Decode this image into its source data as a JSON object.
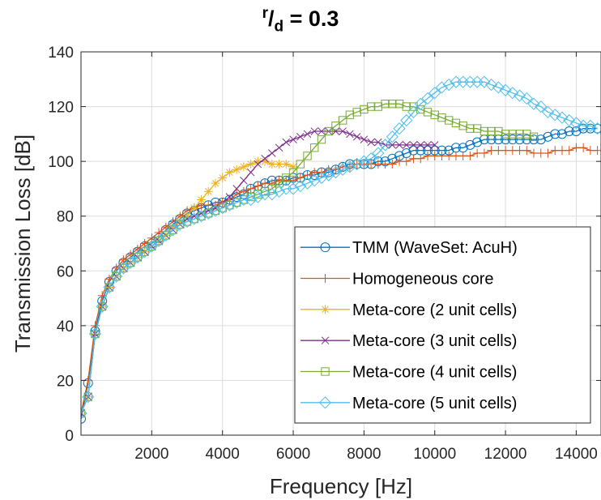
{
  "title": {
    "sup": "r",
    "mid": "/",
    "sub": "d",
    "rest": " = 0.3"
  },
  "colors": {
    "tmm": "#0072BD",
    "homogeneous": "#D95319",
    "meta2": "#EDB120",
    "meta3": "#7E2F8E",
    "meta4": "#77AC30",
    "meta5": "#4DBEEE"
  },
  "chart_data": {
    "type": "line",
    "title": "r/d = 0.3",
    "xlabel": "Frequency [Hz]",
    "ylabel": "Transmission Loss [dB]",
    "xlim": [
      0,
      14700
    ],
    "ylim": [
      0,
      140
    ],
    "xticks": [
      2000,
      4000,
      6000,
      8000,
      10000,
      12000,
      14000
    ],
    "yticks": [
      0,
      20,
      40,
      60,
      80,
      100,
      120,
      140
    ],
    "xtick_labels": [
      "2000",
      "4000",
      "6000",
      "8000",
      "10000",
      "12000",
      "14000"
    ],
    "ytick_labels": [
      "0",
      "20",
      "40",
      "60",
      "80",
      "100",
      "120",
      "140"
    ],
    "grid": true,
    "legend_position": "bottom-right",
    "series": [
      {
        "name": "TMM (WaveSet: AcuH)",
        "color": "#0072BD",
        "marker": "circle",
        "x": [
          0,
          200,
          400,
          600,
          800,
          1000,
          1200,
          1400,
          1600,
          1800,
          2000,
          2200,
          2400,
          2600,
          2800,
          3000,
          3200,
          3400,
          3600,
          3800,
          4000,
          4200,
          4400,
          4600,
          4800,
          5000,
          5200,
          5400,
          5600,
          5800,
          6000,
          6200,
          6400,
          6600,
          6800,
          7000,
          7200,
          7400,
          7600,
          7800,
          8000,
          8200,
          8400,
          8600,
          8800,
          9000,
          9200,
          9400,
          9600,
          9800,
          10000,
          10200,
          10400,
          10600,
          10800,
          11000,
          11200,
          11400,
          11600,
          11800,
          12000,
          12200,
          12400,
          12600,
          12800,
          13000,
          13200,
          13400,
          13600,
          13800,
          14000,
          14200,
          14400,
          14600
        ],
        "y": [
          6,
          19,
          38,
          49,
          56,
          60,
          63,
          65,
          67,
          69,
          70,
          72,
          75,
          77,
          79,
          81,
          82,
          83,
          84,
          85,
          85,
          86,
          87,
          88,
          90,
          91,
          92,
          93,
          93,
          93,
          94,
          94,
          95,
          95,
          96,
          96,
          97,
          98,
          99,
          99,
          99,
          99,
          100,
          100,
          101,
          102,
          103,
          104,
          104,
          104,
          104,
          104,
          104,
          105,
          105,
          106,
          107,
          108,
          108,
          108,
          108,
          108,
          108,
          108,
          108,
          108,
          109,
          110,
          110,
          111,
          111,
          112,
          112,
          112
        ]
      },
      {
        "name": "Homogeneous core",
        "color": "#D95319",
        "marker": "plus",
        "x": [
          0,
          200,
          400,
          600,
          800,
          1000,
          1200,
          1400,
          1600,
          1800,
          2000,
          2200,
          2400,
          2600,
          2800,
          3000,
          3200,
          3400,
          3600,
          3800,
          4000,
          4200,
          4400,
          4600,
          4800,
          5000,
          5200,
          5400,
          5600,
          5800,
          6000,
          6200,
          6400,
          6600,
          6800,
          7000,
          7200,
          7400,
          7600,
          7800,
          8000,
          8200,
          8400,
          8600,
          8800,
          9000,
          9200,
          9400,
          9600,
          9800,
          10000,
          10200,
          10400,
          10600,
          10800,
          11000,
          11200,
          11400,
          11600,
          11800,
          12000,
          12200,
          12400,
          12600,
          12800,
          13000,
          13200,
          13400,
          13600,
          13800,
          14000,
          14200,
          14400,
          14600
        ],
        "y": [
          8,
          20,
          40,
          51,
          57,
          61,
          64,
          66,
          68,
          70,
          72,
          74,
          76,
          78,
          80,
          82,
          83,
          84,
          84,
          84,
          85,
          86,
          88,
          89,
          90,
          91,
          92,
          92,
          93,
          93,
          93,
          94,
          95,
          96,
          96,
          97,
          97,
          98,
          98,
          99,
          99,
          99,
          99,
          99,
          99,
          100,
          100,
          101,
          101,
          102,
          102,
          102,
          102,
          102,
          102,
          102,
          103,
          103,
          104,
          104,
          104,
          104,
          104,
          104,
          103,
          103,
          103,
          104,
          104,
          104,
          105,
          105,
          104,
          104
        ]
      },
      {
        "name": "Meta-core (2 unit cells)",
        "color": "#EDB120",
        "marker": "star",
        "x": [
          0,
          200,
          400,
          600,
          800,
          1000,
          1200,
          1400,
          1600,
          1800,
          2000,
          2200,
          2400,
          2600,
          2800,
          3000,
          3200,
          3400,
          3600,
          3800,
          4000,
          4200,
          4400,
          4600,
          4800,
          5000,
          5200,
          5400,
          5600,
          5800,
          6000
        ],
        "y": [
          8,
          14,
          37,
          47,
          54,
          58,
          61,
          63,
          65,
          67,
          69,
          71,
          73,
          76,
          78,
          80,
          83,
          86,
          89,
          92,
          94,
          96,
          97,
          98,
          99,
          100,
          100,
          99,
          99,
          99,
          98
        ]
      },
      {
        "name": "Meta-core (3 unit cells)",
        "color": "#7E2F8E",
        "marker": "x",
        "x": [
          0,
          200,
          400,
          600,
          800,
          1000,
          1200,
          1400,
          1600,
          1800,
          2000,
          2200,
          2400,
          2600,
          2800,
          3000,
          3200,
          3400,
          3600,
          3800,
          4000,
          4200,
          4400,
          4600,
          4800,
          5000,
          5200,
          5400,
          5600,
          5800,
          6000,
          6200,
          6400,
          6600,
          6800,
          7000,
          7200,
          7400,
          7600,
          7800,
          8000,
          8200,
          8400,
          8600,
          8800,
          9000,
          9200,
          9400,
          9600,
          9800,
          10000
        ],
        "y": [
          8,
          14,
          37,
          47,
          54,
          58,
          61,
          63,
          65,
          67,
          69,
          71,
          73,
          75,
          77,
          79,
          80,
          81,
          82,
          83,
          85,
          87,
          90,
          93,
          96,
          99,
          101,
          103,
          105,
          107,
          108,
          109,
          110,
          111,
          111,
          111,
          111,
          111,
          110,
          109,
          108,
          107,
          107,
          106,
          106,
          106,
          106,
          106,
          106,
          106,
          106
        ]
      },
      {
        "name": "Meta-core (4 unit cells)",
        "color": "#77AC30",
        "marker": "square",
        "x": [
          0,
          200,
          400,
          600,
          800,
          1000,
          1200,
          1400,
          1600,
          1800,
          2000,
          2200,
          2400,
          2600,
          2800,
          3000,
          3200,
          3400,
          3600,
          3800,
          4000,
          4200,
          4400,
          4600,
          4800,
          5000,
          5200,
          5400,
          5600,
          5800,
          6000,
          6200,
          6400,
          6600,
          6800,
          7000,
          7200,
          7400,
          7600,
          7800,
          8000,
          8200,
          8400,
          8600,
          8800,
          9000,
          9200,
          9400,
          9600,
          9800,
          10000,
          10200,
          10400,
          10600,
          10800,
          11000,
          11200,
          11400,
          11600,
          11800,
          12000,
          12200,
          12400,
          12600,
          12800
        ],
        "y": [
          8,
          14,
          37,
          47,
          54,
          58,
          61,
          63,
          65,
          67,
          69,
          71,
          73,
          75,
          77,
          78,
          79,
          80,
          81,
          82,
          83,
          84,
          85,
          86,
          87,
          88,
          89,
          90,
          92,
          94,
          96,
          99,
          102,
          105,
          108,
          111,
          113,
          115,
          117,
          118,
          119,
          120,
          120,
          121,
          121,
          121,
          120,
          120,
          119,
          118,
          117,
          116,
          115,
          114,
          113,
          112,
          112,
          111,
          111,
          111,
          110,
          110,
          110,
          110,
          109
        ]
      },
      {
        "name": "Meta-core (5 unit cells)",
        "color": "#4DBEEE",
        "marker": "diamond",
        "x": [
          0,
          200,
          400,
          600,
          800,
          1000,
          1200,
          1400,
          1600,
          1800,
          2000,
          2200,
          2400,
          2600,
          2800,
          3000,
          3200,
          3400,
          3600,
          3800,
          4000,
          4200,
          4400,
          4600,
          4800,
          5000,
          5200,
          5400,
          5600,
          5800,
          6000,
          6200,
          6400,
          6600,
          6800,
          7000,
          7200,
          7400,
          7600,
          7800,
          8000,
          8200,
          8400,
          8600,
          8800,
          9000,
          9200,
          9400,
          9600,
          9800,
          10000,
          10200,
          10400,
          10600,
          10800,
          11000,
          11200,
          11400,
          11600,
          11800,
          12000,
          12200,
          12400,
          12600,
          12800,
          13000,
          13200,
          13400,
          13600,
          13800,
          14000,
          14200,
          14400,
          14600
        ],
        "y": [
          8,
          14,
          37,
          47,
          54,
          58,
          61,
          63,
          65,
          67,
          69,
          71,
          73,
          75,
          77,
          78,
          79,
          80,
          81,
          82,
          83,
          84,
          85,
          86,
          86,
          87,
          88,
          88,
          89,
          90,
          90,
          91,
          92,
          93,
          94,
          95,
          96,
          97,
          98,
          99,
          100,
          101,
          103,
          106,
          109,
          112,
          115,
          118,
          121,
          123,
          125,
          127,
          128,
          129,
          129,
          129,
          129,
          129,
          128,
          127,
          126,
          125,
          124,
          123,
          121,
          120,
          118,
          117,
          116,
          115,
          114,
          113,
          113,
          112
        ]
      }
    ]
  }
}
